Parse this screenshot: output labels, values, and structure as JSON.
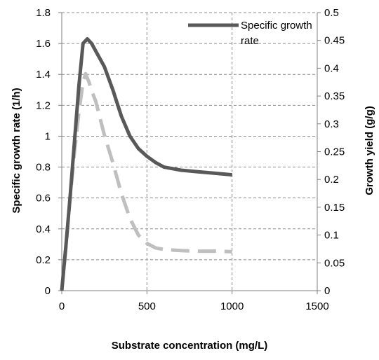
{
  "chart_data": {
    "type": "line",
    "xlabel": "Substrate concentration (mg/L)",
    "ylabel": "Specific growth rate (1/h)",
    "y2label": "Growth yield (g/g)",
    "xlim": [
      0,
      1500
    ],
    "ylim": [
      0,
      1.8
    ],
    "y2lim": [
      0,
      0.5
    ],
    "x_ticks": [
      "0",
      "500",
      "1000",
      "1500"
    ],
    "y_ticks": [
      "0",
      "0.2",
      "0.4",
      "0.6",
      "0.8",
      "1",
      "1.2",
      "1.4",
      "1.6",
      "1.8"
    ],
    "y2_ticks": [
      "0",
      "0.05",
      "0.1",
      "0.15",
      "0.2",
      "0.25",
      "0.3",
      "0.35",
      "0.4",
      "0.45",
      "0.5"
    ],
    "grid": true,
    "legend_position": "top-right",
    "legend_lines": [
      "Specific growth",
      "rate"
    ],
    "series": [
      {
        "name": "Specific growth rate",
        "axis": "left",
        "color": "#595959",
        "style": "solid",
        "x": [
          0,
          25,
          50,
          75,
          100,
          125,
          150,
          175,
          200,
          250,
          300,
          350,
          400,
          450,
          500,
          550,
          600,
          700,
          800,
          900,
          1000
        ],
        "y": [
          0,
          0.3,
          0.62,
          0.97,
          1.32,
          1.6,
          1.63,
          1.6,
          1.55,
          1.45,
          1.3,
          1.13,
          1.0,
          0.92,
          0.87,
          0.83,
          0.8,
          0.78,
          0.77,
          0.76,
          0.75
        ]
      },
      {
        "axis": "right",
        "color": "#bfbfbf",
        "style": "dashed",
        "x": [
          0,
          25,
          50,
          75,
          100,
          125,
          140,
          160,
          175,
          200,
          225,
          250,
          300,
          350,
          400,
          450,
          500,
          550,
          600,
          700,
          800,
          900,
          1000
        ],
        "y": [
          0,
          0.08,
          0.17,
          0.25,
          0.32,
          0.375,
          0.39,
          0.375,
          0.36,
          0.34,
          0.31,
          0.28,
          0.23,
          0.175,
          0.13,
          0.1,
          0.085,
          0.077,
          0.074,
          0.072,
          0.071,
          0.071,
          0.07
        ]
      }
    ]
  }
}
